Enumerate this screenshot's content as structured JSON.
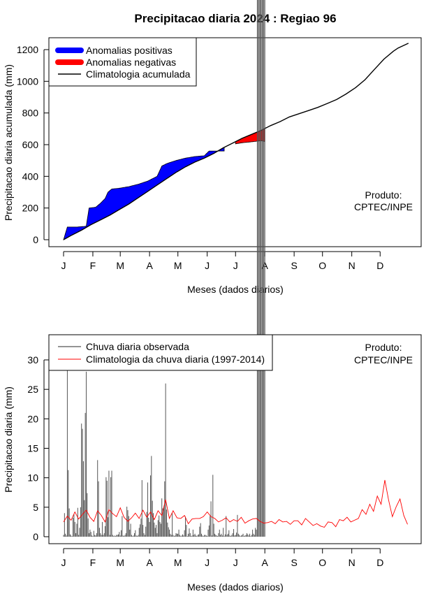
{
  "title": "Precipitacao diaria 2024 : Regiao 96",
  "colors": {
    "positive": "#0000ff",
    "negative": "#ff0000",
    "line": "#000000",
    "bars": "#555555",
    "clim": "#ff0000"
  },
  "chart_data": [
    {
      "type": "area",
      "id": "top",
      "title": "Precipitacao diaria 2024 : Regiao 96",
      "xlabel": "Meses (dados diarios)",
      "ylabel": "Precipitacao diaria acumulada (mm)",
      "x_unit": "day of year",
      "xlim": [
        1,
        366
      ],
      "ylim": [
        0,
        1240
      ],
      "month_ticks": [
        1,
        32,
        61,
        92,
        122,
        153,
        183,
        214,
        245,
        275,
        306,
        336
      ],
      "month_labels": [
        "J",
        "F",
        "M",
        "A",
        "M",
        "J",
        "J",
        "A",
        "S",
        "O",
        "N",
        "D"
      ],
      "y_ticks": [
        0,
        200,
        400,
        600,
        800,
        1000,
        1200
      ],
      "legend": {
        "position": "top-left",
        "entries": [
          "Anomalias positivas",
          "Anomalias negativas",
          "Climatologia acumulada"
        ]
      },
      "annotation": [
        "Produto:",
        "CPTEC/INPE"
      ],
      "series": [
        {
          "name": "Climatologia acumulada",
          "x": [
            1,
            10,
            20,
            30,
            40,
            50,
            60,
            70,
            80,
            90,
            100,
            110,
            120,
            130,
            140,
            150,
            160,
            170,
            180,
            190,
            200,
            210,
            220,
            230,
            240,
            250,
            260,
            270,
            280,
            290,
            300,
            310,
            320,
            330,
            340,
            350,
            355,
            366
          ],
          "values": [
            0,
            30,
            60,
            95,
            125,
            155,
            190,
            225,
            265,
            305,
            345,
            385,
            425,
            460,
            490,
            515,
            545,
            580,
            610,
            640,
            665,
            690,
            720,
            745,
            775,
            795,
            815,
            835,
            860,
            885,
            920,
            960,
            1010,
            1075,
            1140,
            1190,
            1210,
            1240
          ]
        },
        {
          "name": "Chuva acumulada observada",
          "x": [
            1,
            5,
            8,
            15,
            25,
            28,
            35,
            40,
            45,
            48,
            52,
            60,
            70,
            80,
            90,
            100,
            105,
            110,
            120,
            130,
            140,
            150,
            155,
            165,
            170,
            180,
            190,
            200,
            210,
            215,
            210,
            214
          ],
          "values": [
            0,
            80,
            80,
            80,
            85,
            200,
            205,
            230,
            260,
            300,
            320,
            325,
            335,
            350,
            370,
            400,
            465,
            480,
            500,
            515,
            525,
            530,
            560,
            585,
            590,
            605,
            610,
            615,
            625,
            620,
            625,
            615
          ]
        }
      ]
    },
    {
      "type": "bar",
      "id": "bottom",
      "xlabel": "Meses (dados diarios)",
      "ylabel": "Precipitacao diaria (mm)",
      "xlim": [
        1,
        366
      ],
      "ylim": [
        0,
        34
      ],
      "y_ticks": [
        0,
        5,
        10,
        15,
        20,
        25,
        30
      ],
      "month_ticks": [
        1,
        32,
        61,
        92,
        122,
        153,
        183,
        214,
        245,
        275,
        306,
        336
      ],
      "month_labels": [
        "J",
        "F",
        "M",
        "A",
        "M",
        "J",
        "J",
        "A",
        "S",
        "O",
        "N",
        "D"
      ],
      "legend": {
        "position": "top-left",
        "entries": [
          "Chuva diaria observada",
          "Climatologia da chuva diaria (1997-2014)"
        ]
      },
      "annotation": [
        "Produto:",
        "CPTEC/INPE"
      ],
      "observed_days": [
        1,
        2,
        3,
        4,
        5,
        6,
        7,
        8,
        9,
        10,
        11,
        12,
        13,
        14,
        15,
        16,
        17,
        18,
        19,
        20,
        21,
        22,
        23,
        24,
        25,
        26,
        27,
        28,
        29,
        30,
        31,
        32,
        33,
        34,
        35,
        36,
        37,
        38,
        39,
        40,
        41,
        42,
        43,
        44,
        45,
        46,
        47,
        48,
        49,
        50,
        51,
        52,
        53,
        54,
        55,
        56,
        57,
        58,
        59,
        60,
        61,
        62,
        63,
        64,
        65,
        66,
        67,
        68,
        69,
        70,
        71,
        72,
        73,
        74,
        75,
        76,
        77,
        78,
        79,
        80,
        81,
        82,
        83,
        84,
        85,
        86,
        87,
        88,
        89,
        90,
        91,
        92,
        93,
        94,
        95,
        96,
        97,
        98,
        99,
        100,
        101,
        102,
        103,
        104,
        105,
        106,
        107,
        108,
        109,
        110,
        111,
        112,
        113,
        114,
        115,
        116,
        117,
        118,
        119,
        120,
        121,
        122,
        123,
        124,
        125,
        126,
        127,
        128,
        129,
        130,
        131,
        132,
        133,
        134,
        135,
        136,
        137,
        138,
        139,
        140,
        141,
        142,
        143,
        144,
        145,
        146,
        147,
        148,
        149,
        150,
        151,
        152,
        153,
        154,
        155,
        156,
        157,
        158,
        159,
        160,
        161,
        162,
        163,
        164,
        165,
        166,
        167,
        168,
        169,
        170,
        171,
        172,
        173,
        174,
        175,
        176,
        177,
        178,
        179,
        180,
        181,
        182,
        183,
        184,
        185,
        186,
        187,
        188,
        189,
        190,
        191,
        192,
        193,
        194,
        195,
        196,
        197,
        198,
        199,
        200,
        201,
        202,
        203,
        204,
        205,
        206,
        207,
        208,
        209,
        210,
        211,
        212,
        213,
        214
      ],
      "observed_values": [
        0.3,
        4,
        0.5,
        0.2,
        33,
        11.3,
        4.8,
        0.4,
        0.2,
        0.1,
        3.2,
        3.8,
        2.5,
        0.6,
        2.2,
        4.9,
        0.3,
        1.5,
        5,
        19.2,
        18.3,
        12.8,
        6.2,
        21,
        28,
        7.4,
        3.1,
        0.6,
        1.2,
        0.8,
        0.2,
        0.1,
        1,
        0.3,
        0.2,
        0.6,
        13,
        9.4,
        1.5,
        0.6,
        0.3,
        2.5,
        0.3,
        0.6,
        1.8,
        10.1,
        9.5,
        3.3,
        11.2,
        0.3,
        10.1,
        11.2,
        0.3,
        0.1,
        0.2,
        0.1,
        0.3,
        0.3,
        0.4,
        0.8,
        0.2,
        1.1,
        3.5,
        0.2,
        0.1,
        0.3,
        0.6,
        5.1,
        4.5,
        3.5,
        1.2,
        2.2,
        0.3,
        0.1,
        0.2,
        0.6,
        1.1,
        0.2,
        0.1,
        0.3,
        1.5,
        2.1,
        3.1,
        9.6,
        2,
        0.6,
        0.3,
        1.7,
        4.2,
        9.2,
        3.2,
        2.5,
        10.4,
        13.7,
        6.1,
        4,
        2.4,
        1.5,
        2,
        0.6,
        2.8,
        3.6,
        2.5,
        2.2,
        6.5,
        4.8,
        5,
        9.4,
        26,
        4.6,
        2.4,
        1.6,
        1.2,
        0.5,
        0.3,
        4,
        0.3,
        0.1,
        0.2,
        0.6,
        0.5,
        0.5,
        1.2,
        0.3,
        0.1,
        0.2,
        0.4,
        0.2,
        1.1,
        3.4,
        2,
        0.1,
        0.5,
        1.4,
        0.6,
        0.1,
        0.2,
        1.2,
        0.3,
        0.5,
        0.2,
        0.1,
        0.3,
        0.4,
        1.7,
        2.3,
        0.5,
        0.2,
        0.1,
        0.3,
        0.3,
        0.2,
        0.1,
        1.2,
        1.9,
        3.5,
        6,
        0.2,
        10.5,
        2.2,
        0.5,
        0.3,
        0.2,
        0.1,
        0.6,
        1.2,
        0.3,
        0.5,
        0.2,
        1.5,
        0.1,
        0.4,
        3.5,
        0.3,
        0.5,
        1.1,
        0.2,
        0.1,
        0.3,
        0.6,
        1.3,
        0.2,
        0.3,
        0.7,
        3.7,
        0.5,
        0.3,
        0.1,
        0.2,
        0.3,
        0.5,
        0.1,
        0.2,
        0.3,
        0.6,
        0.4,
        0.2,
        0.5,
        0.1,
        0.3,
        1.2,
        0.5,
        0.3,
        1.5,
        1.2
      ],
      "climatology_days": [
        1,
        5,
        9,
        13,
        17,
        21,
        25,
        29,
        33,
        37,
        41,
        45,
        49,
        53,
        57,
        61,
        65,
        69,
        73,
        77,
        81,
        85,
        89,
        93,
        97,
        101,
        105,
        109,
        113,
        117,
        121,
        125,
        129,
        133,
        137,
        141,
        145,
        149,
        153,
        157,
        161,
        165,
        169,
        173,
        177,
        181,
        185,
        189,
        193,
        197,
        201,
        205,
        209,
        213,
        217,
        221,
        225,
        229,
        233,
        237,
        241,
        245,
        249,
        253,
        257,
        261,
        265,
        269,
        273,
        277,
        281,
        285,
        289,
        293,
        297,
        301,
        305,
        309,
        313,
        317,
        321,
        325,
        329,
        333,
        337,
        341,
        345,
        349,
        353,
        357,
        361,
        365
      ],
      "climatology_values": [
        2.5,
        3.5,
        2.8,
        4.2,
        3.0,
        3.8,
        4.5,
        3.3,
        2.6,
        4.4,
        3.6,
        2.5,
        4.6,
        3.9,
        3.4,
        4.9,
        3.3,
        2.6,
        3.2,
        4.0,
        3.1,
        4.5,
        3.3,
        4.2,
        2.9,
        4.4,
        3.6,
        6.3,
        3.1,
        4.4,
        3.2,
        3.1,
        3.6,
        2.2,
        3.0,
        3.1,
        3.1,
        3.4,
        4.2,
        3.4,
        3.1,
        2.5,
        2.8,
        3.2,
        2.5,
        2.9,
        2.6,
        3.3,
        2.3,
        2.7,
        3.0,
        3.1,
        2.6,
        2.3,
        2.4,
        2.6,
        2.2,
        2.9,
        2.5,
        2.6,
        2.1,
        2.7,
        2.7,
        2.0,
        3.1,
        2.5,
        1.9,
        2.2,
        1.8,
        1.6,
        2.5,
        2.4,
        1.7,
        2.9,
        2.7,
        3.3,
        2.5,
        2.8,
        3.1,
        4.6,
        3.8,
        5.5,
        4.3,
        6.9,
        5.5,
        9.6,
        6.2,
        3.4,
        5.1,
        6.4,
        3.6,
        2.1
      ]
    }
  ]
}
